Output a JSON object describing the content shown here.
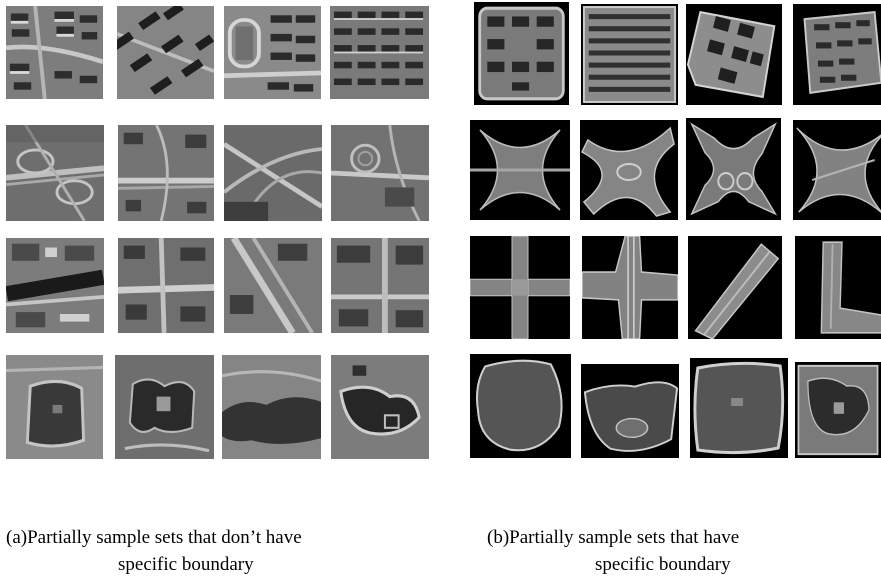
{
  "captions": {
    "a_line1": "(a)Partially sample sets that don’t have",
    "a_line2": "specific boundary",
    "b_line1": "(b)Partially sample sets that have",
    "b_line2": "specific boundary"
  },
  "rows": [
    "residential",
    "interchange",
    "crossroad",
    "lake"
  ],
  "colors": {
    "black_background": "#000000",
    "gray_light": "#b9b9b9",
    "gray_dark": "#3c3c3c"
  }
}
